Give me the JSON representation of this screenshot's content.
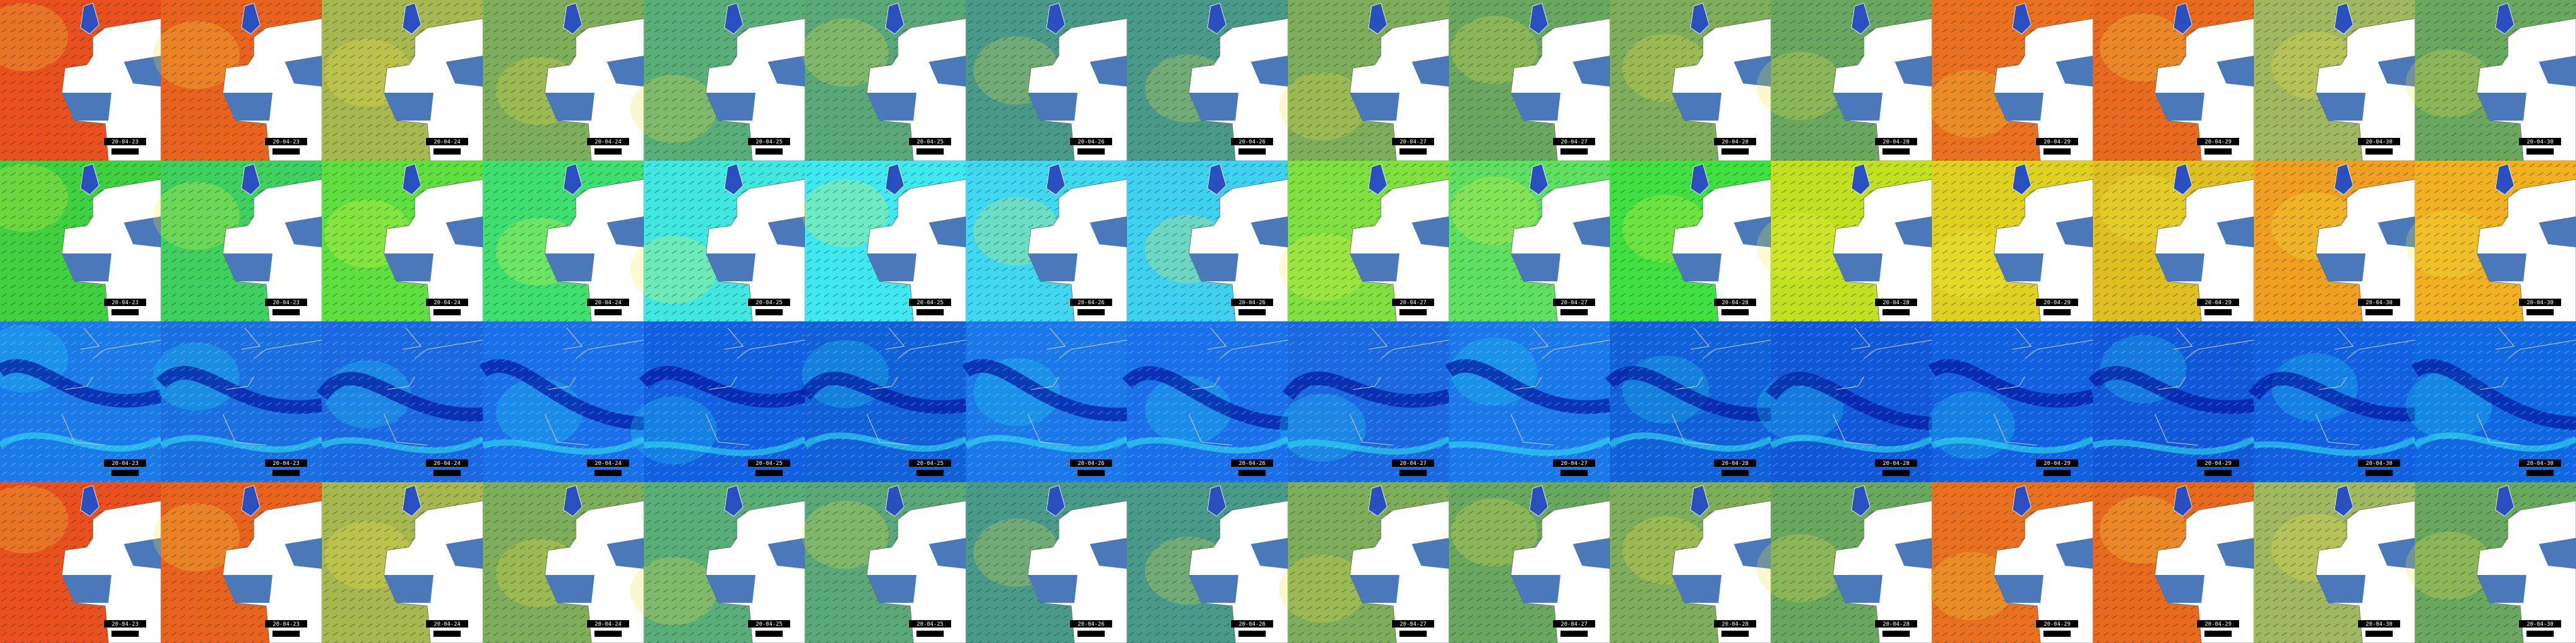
{
  "dates": [
    "20-04-23",
    "20-04-23",
    "20-04-24",
    "20-04-24",
    "20-04-25",
    "20-04-25",
    "20-04-26",
    "20-04-26",
    "20-04-27",
    "20-04-27",
    "20-04-28",
    "20-04-28",
    "20-04-29",
    "20-04-29",
    "20-04-30",
    "20-04-30"
  ]
}
